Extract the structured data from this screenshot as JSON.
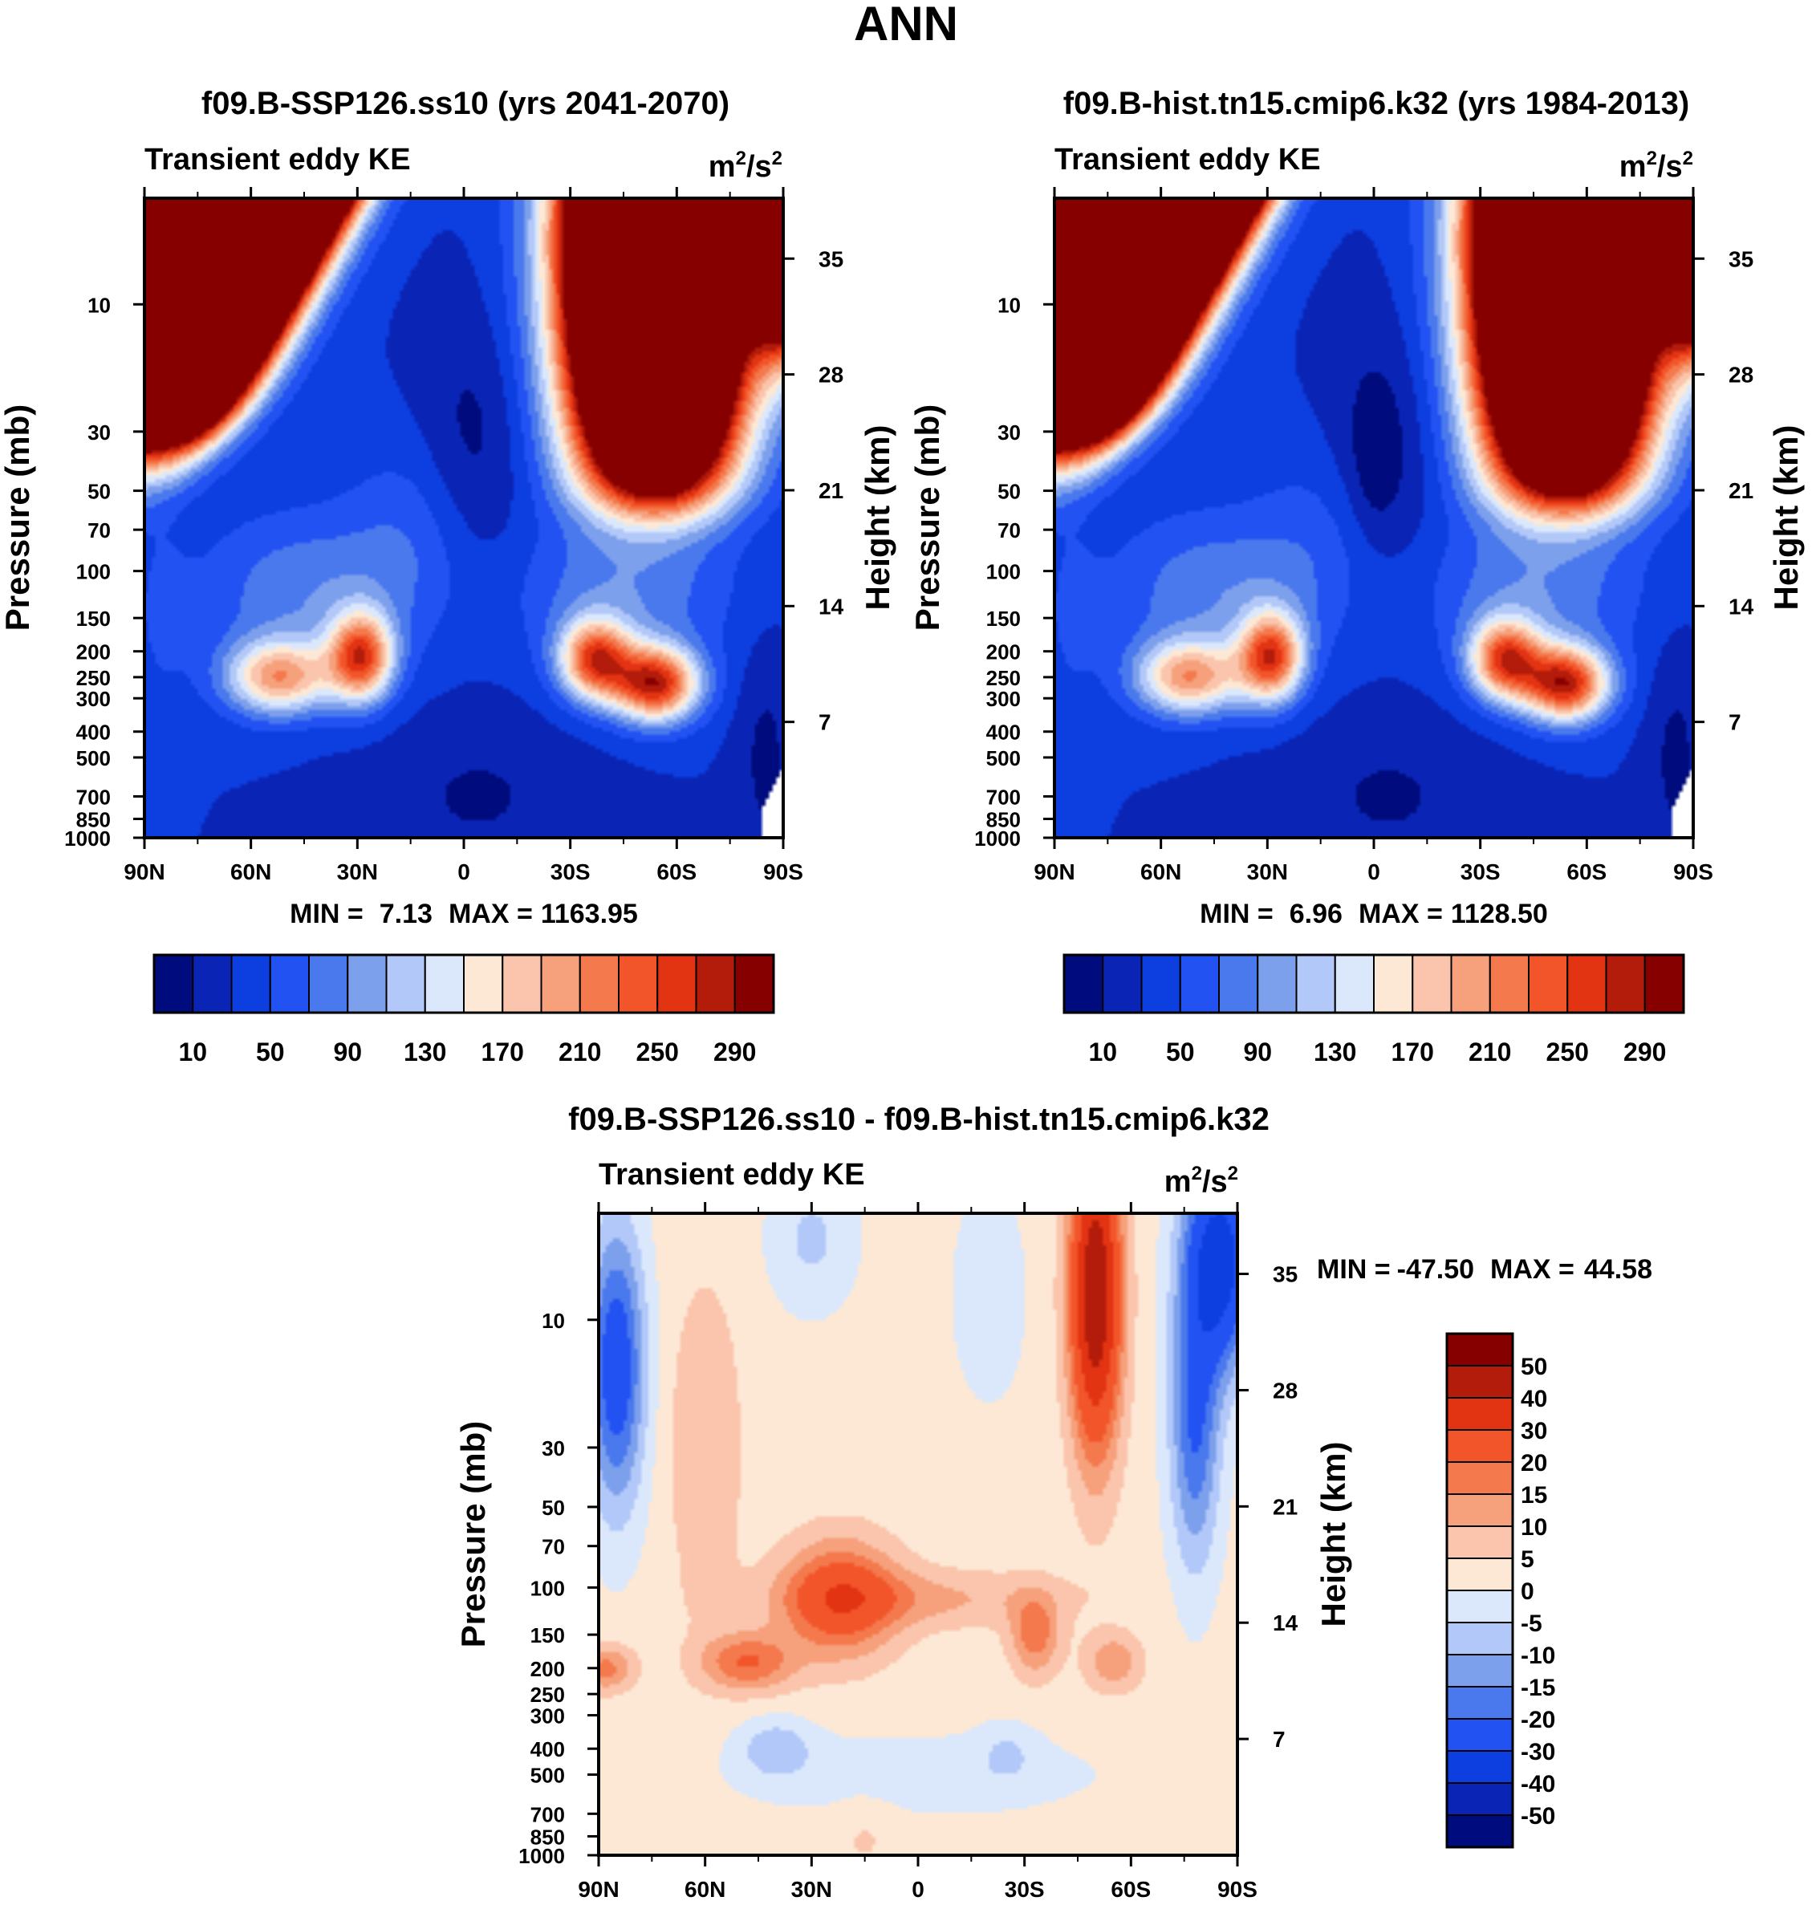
{
  "figure": {
    "season": "ANN",
    "units_base": "m",
    "units_exp1": "2",
    "units_mid": "/s",
    "units_exp2": "2"
  },
  "chart_data": [
    {
      "type": "heatmap",
      "title": "f09.B-SSP126.ss10 (yrs 2041-2070)",
      "field": "Transient eddy KE",
      "ylabel": "Pressure (mb)",
      "y2label": "Height (km)",
      "x_ticks": [
        "90N",
        "60N",
        "30N",
        "0",
        "30S",
        "60S",
        "90S"
      ],
      "x_values": [
        -90,
        -60,
        -30,
        0,
        30,
        60,
        90
      ],
      "y_ticks": [
        "10",
        "30",
        "50",
        "70",
        "100",
        "150",
        "200",
        "250",
        "300",
        "400",
        "500",
        "700",
        "850",
        "1000"
      ],
      "y_values": [
        10,
        30,
        50,
        70,
        100,
        150,
        200,
        250,
        300,
        400,
        500,
        700,
        850,
        1000
      ],
      "y2_ticks": [
        "35",
        "28",
        "21",
        "14",
        "7"
      ],
      "y2_values": [
        35,
        28,
        21,
        14,
        7
      ],
      "ylim": [
        4,
        1000
      ],
      "min_label": "MIN =",
      "min_value": "7.13",
      "max_label": "MAX =",
      "max_value": "1163.95",
      "colorbar_labels": [
        "10",
        "50",
        "90",
        "130",
        "170",
        "210",
        "250",
        "290"
      ],
      "colorbar_levels": [
        10,
        30,
        50,
        70,
        90,
        110,
        130,
        150,
        170,
        190,
        210,
        230,
        250,
        270,
        290
      ],
      "colorbar_colors": [
        "#000c7d",
        "#0a25b5",
        "#0d3ee0",
        "#2252f2",
        "#4a79ee",
        "#7da0ec",
        "#b2c8f8",
        "#dbe8fc",
        "#fde8d5",
        "#fac5ac",
        "#f6a17c",
        "#f4794c",
        "#f3552a",
        "#e23312",
        "#b31c0a",
        "#870000"
      ],
      "colorbar_orientation": "horizontal",
      "max_locations": [
        "30N near 200 mb",
        "50S near 300 mb"
      ]
    },
    {
      "type": "heatmap",
      "title": "f09.B-hist.tn15.cmip6.k32 (yrs 1984-2013)",
      "field": "Transient eddy KE",
      "ylabel": "Pressure (mb)",
      "y2label": "Height (km)",
      "x_ticks": [
        "90N",
        "60N",
        "30N",
        "0",
        "30S",
        "60S",
        "90S"
      ],
      "x_values": [
        -90,
        -60,
        -30,
        0,
        30,
        60,
        90
      ],
      "y_ticks": [
        "10",
        "30",
        "50",
        "70",
        "100",
        "150",
        "200",
        "250",
        "300",
        "400",
        "500",
        "700",
        "850",
        "1000"
      ],
      "y_values": [
        10,
        30,
        50,
        70,
        100,
        150,
        200,
        250,
        300,
        400,
        500,
        700,
        850,
        1000
      ],
      "y2_ticks": [
        "35",
        "28",
        "21",
        "14",
        "7"
      ],
      "y2_values": [
        35,
        28,
        21,
        14,
        7
      ],
      "ylim": [
        4,
        1000
      ],
      "min_label": "MIN =",
      "min_value": "6.96",
      "max_label": "MAX =",
      "max_value": "1128.50",
      "colorbar_labels": [
        "10",
        "50",
        "90",
        "130",
        "170",
        "210",
        "250",
        "290"
      ],
      "colorbar_levels": [
        10,
        30,
        50,
        70,
        90,
        110,
        130,
        150,
        170,
        190,
        210,
        230,
        250,
        270,
        290
      ],
      "colorbar_colors": [
        "#000c7d",
        "#0a25b5",
        "#0d3ee0",
        "#2252f2",
        "#4a79ee",
        "#7da0ec",
        "#b2c8f8",
        "#dbe8fc",
        "#fde8d5",
        "#fac5ac",
        "#f6a17c",
        "#f4794c",
        "#f3552a",
        "#e23312",
        "#b31c0a",
        "#870000"
      ],
      "colorbar_orientation": "horizontal",
      "max_locations": [
        "30N near 200 mb",
        "50S near 250 mb"
      ]
    },
    {
      "type": "heatmap",
      "title": "f09.B-SSP126.ss10 - f09.B-hist.tn15.cmip6.k32",
      "field": "Transient eddy KE",
      "ylabel": "Pressure (mb)",
      "y2label": "Height (km)",
      "x_ticks": [
        "90N",
        "60N",
        "30N",
        "0",
        "30S",
        "60S",
        "90S"
      ],
      "x_values": [
        -90,
        -60,
        -30,
        0,
        30,
        60,
        90
      ],
      "y_ticks": [
        "10",
        "30",
        "50",
        "70",
        "100",
        "150",
        "200",
        "250",
        "300",
        "400",
        "500",
        "700",
        "850",
        "1000"
      ],
      "y_values": [
        10,
        30,
        50,
        70,
        100,
        150,
        200,
        250,
        300,
        400,
        500,
        700,
        850,
        1000
      ],
      "y2_ticks": [
        "35",
        "28",
        "21",
        "14",
        "7"
      ],
      "y2_values": [
        35,
        28,
        21,
        14,
        7
      ],
      "ylim": [
        4,
        1000
      ],
      "min_label": "MIN =",
      "min_value": "-47.50",
      "max_label": "MAX =",
      "max_value": "44.58",
      "colorbar_labels": [
        "50",
        "40",
        "30",
        "20",
        "15",
        "10",
        "5",
        "0",
        "-5",
        "-10",
        "-15",
        "-20",
        "-30",
        "-40",
        "-50"
      ],
      "colorbar_levels": [
        50,
        40,
        30,
        20,
        15,
        10,
        5,
        0,
        -5,
        -10,
        -15,
        -20,
        -30,
        -40,
        -50
      ],
      "colorbar_colors": [
        "#870000",
        "#b31c0a",
        "#e23312",
        "#f3552a",
        "#f4794c",
        "#f6a17c",
        "#fac5ac",
        "#fde8d5",
        "#dbe8fc",
        "#b2c8f8",
        "#7da0ec",
        "#4a79ee",
        "#2252f2",
        "#0d3ee0",
        "#0a25b5",
        "#000c7d"
      ],
      "colorbar_orientation": "vertical"
    }
  ]
}
